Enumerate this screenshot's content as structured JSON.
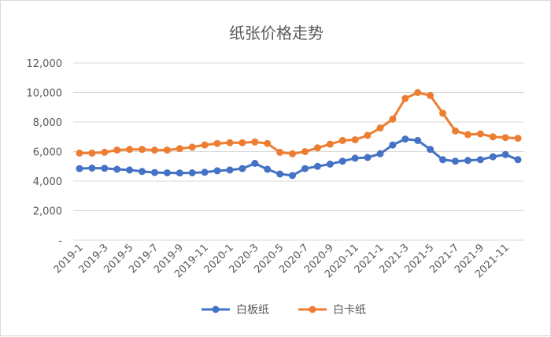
{
  "chart_data": {
    "type": "line",
    "title": "纸张价格走势",
    "xlabel": "",
    "ylabel": "",
    "ylim": [
      0,
      12000
    ],
    "y_ticks": [
      0,
      2000,
      4000,
      6000,
      8000,
      10000,
      12000
    ],
    "y_tick_labels": [
      "-",
      "2,000",
      "4,000",
      "6,000",
      "8,000",
      "10,000",
      "12,000"
    ],
    "grid": true,
    "legend_position": "bottom",
    "x": [
      "2019-1",
      "2019-2",
      "2019-3",
      "2019-4",
      "2019-5",
      "2019-6",
      "2019-7",
      "2019-8",
      "2019-9",
      "2019-10",
      "2019-11",
      "2019-12",
      "2020-1",
      "2020-2",
      "2020-3",
      "2020-4",
      "2020-5",
      "2020-6",
      "2020-7",
      "2020-8",
      "2020-9",
      "2020-10",
      "2020-11",
      "2020-12",
      "2021-1",
      "2021-2",
      "2021-3",
      "2021-4",
      "2021-5",
      "2021-6",
      "2021-7",
      "2021-8",
      "2021-9",
      "2021-10",
      "2021-11",
      "2021-12"
    ],
    "x_tick_labels": [
      "2019-1",
      "2019-3",
      "2019-5",
      "2019-7",
      "2019-9",
      "2019-11",
      "2020-1",
      "2020-3",
      "2020-5",
      "2020-7",
      "2020-9",
      "2020-11",
      "2021-1",
      "2021-3",
      "2021-5",
      "2021-7",
      "2021-9",
      "2021-11"
    ],
    "series": [
      {
        "name": "白板纸",
        "color": "#4472c4",
        "values": [
          4850,
          4880,
          4870,
          4800,
          4750,
          4650,
          4580,
          4560,
          4550,
          4560,
          4600,
          4700,
          4750,
          4850,
          5200,
          4800,
          4480,
          4380,
          4850,
          5000,
          5150,
          5350,
          5550,
          5600,
          5850,
          6450,
          6850,
          6750,
          6150,
          5450,
          5350,
          5400,
          5450,
          5650,
          5800,
          5450
        ]
      },
      {
        "name": "白卡纸",
        "color": "#ed7d31",
        "values": [
          5900,
          5900,
          5950,
          6100,
          6150,
          6150,
          6100,
          6100,
          6200,
          6300,
          6450,
          6550,
          6600,
          6600,
          6650,
          6550,
          5950,
          5850,
          6000,
          6250,
          6500,
          6750,
          6800,
          7100,
          7600,
          8200,
          9600,
          10000,
          9800,
          8600,
          7400,
          7150,
          7200,
          7000,
          6950,
          6900
        ]
      }
    ]
  }
}
